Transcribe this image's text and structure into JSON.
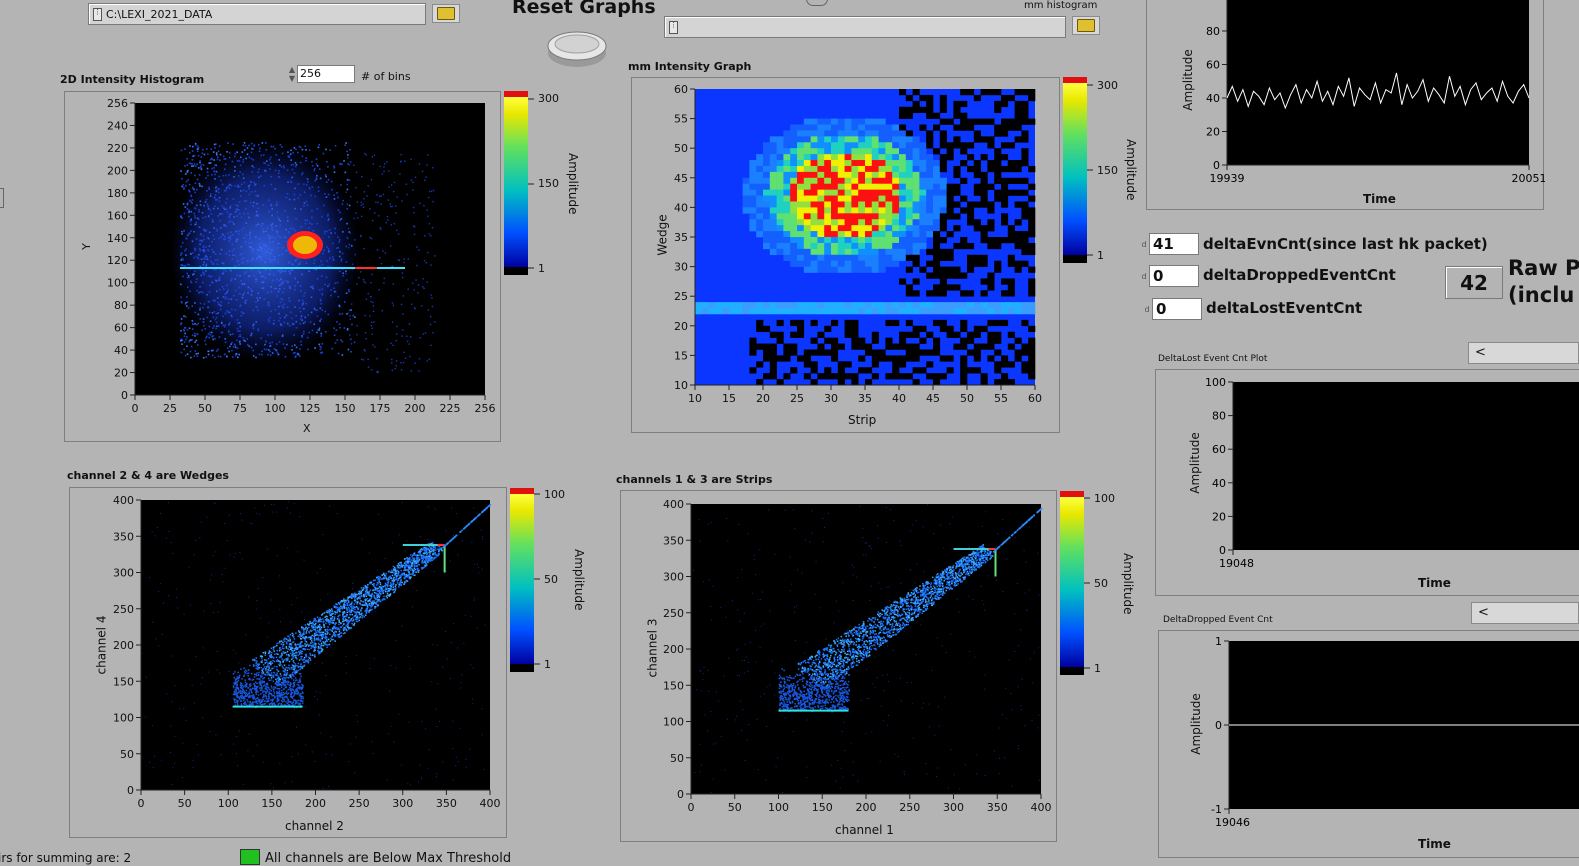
{
  "top": {
    "data_path": "C:\\LEXI_2021_DATA",
    "reset_label": "Reset Graphs",
    "mm_hist_label": "mm histogram",
    "mm_hist_path": ""
  },
  "hist2d": {
    "title": "2D Intensity Histogram",
    "bins_value": "256",
    "bins_label": "# of bins",
    "xlabel": "X",
    "ylabel": "Y",
    "xticks": [
      "0",
      "25",
      "50",
      "75",
      "100",
      "125",
      "150",
      "175",
      "200",
      "225",
      "256"
    ],
    "yticks": [
      "0",
      "20",
      "40",
      "60",
      "80",
      "100",
      "120",
      "140",
      "160",
      "180",
      "200",
      "220",
      "240",
      "256"
    ],
    "scale_label": "Amplitude",
    "scale_ticks": [
      "300",
      "150",
      "1"
    ]
  },
  "mm": {
    "title": "mm Intensity Graph",
    "xlabel": "Strip",
    "ylabel": "Wedge",
    "xticks": [
      "10",
      "15",
      "20",
      "25",
      "30",
      "35",
      "40",
      "45",
      "50",
      "55",
      "60"
    ],
    "yticks": [
      "10",
      "15",
      "20",
      "25",
      "30",
      "35",
      "40",
      "45",
      "50",
      "55",
      "60"
    ],
    "scale_label": "Amplitude",
    "scale_ticks": [
      "300",
      "150",
      "1"
    ]
  },
  "wedges": {
    "title": "channel 2 & 4 are Wedges",
    "xlabel": "channel 2",
    "ylabel": "channel 4",
    "xticks": [
      "0",
      "50",
      "100",
      "150",
      "200",
      "250",
      "300",
      "350",
      "400"
    ],
    "yticks": [
      "0",
      "50",
      "100",
      "150",
      "200",
      "250",
      "300",
      "350",
      "400"
    ],
    "scale_label": "Amplitude",
    "scale_ticks": [
      "100",
      "50",
      "1"
    ]
  },
  "strips": {
    "title": "channels 1 & 3 are Strips",
    "xlabel": "channel 1",
    "ylabel": "channel 3",
    "xticks": [
      "0",
      "50",
      "100",
      "150",
      "200",
      "250",
      "300",
      "350",
      "400"
    ],
    "yticks": [
      "0",
      "50",
      "100",
      "150",
      "200",
      "250",
      "300",
      "350",
      "400"
    ],
    "scale_label": "Amplitude",
    "scale_ticks": [
      "100",
      "50",
      "1"
    ]
  },
  "amp_plot": {
    "ylabel": "Amplitude",
    "xlabel": "Time",
    "yticks": [
      "0",
      "20",
      "40",
      "60",
      "80"
    ],
    "xticks": [
      "19939",
      "20051"
    ]
  },
  "counters": {
    "evn_value": "41",
    "evn_label": "deltaEvnCnt(since last hk packet)",
    "dropped_value": "0",
    "dropped_label": "deltaDroppedEventCnt",
    "lost_value": "0",
    "lost_label": "deltaLostEventCnt",
    "raw_value": "42",
    "raw_label1": "Raw P",
    "raw_label2": "(inclu"
  },
  "lost_plot": {
    "title": "DeltaLost Event Cnt Plot",
    "ylabel": "Amplitude",
    "xlabel": "Time",
    "yticks": [
      "0",
      "20",
      "40",
      "60",
      "80",
      "100"
    ],
    "xticks": [
      "19048"
    ]
  },
  "dropped_plot": {
    "title": "DeltaDropped  Event Cnt",
    "ylabel": "Amplitude",
    "xlabel": "Time",
    "yticks": [
      "-1",
      "0",
      "1"
    ],
    "xticks": [
      "19046"
    ]
  },
  "bottom": {
    "pairs_text": "irs for summing are: 2",
    "threshold_text": "All channels are Below Max Threshold"
  },
  "chart_data": [
    {
      "type": "heatmap",
      "title": "2D Intensity Histogram",
      "xlabel": "X",
      "ylabel": "Y",
      "xlim": [
        0,
        256
      ],
      "ylim": [
        0,
        256
      ],
      "colorbar": [
        1,
        300
      ],
      "hotspot": {
        "x": 125,
        "y": 130
      },
      "streak_y": 118
    },
    {
      "type": "heatmap",
      "title": "mm Intensity Graph",
      "xlabel": "Strip",
      "ylabel": "Wedge",
      "xlim": [
        10,
        60
      ],
      "ylim": [
        10,
        60
      ],
      "colorbar": [
        1,
        300
      ],
      "blob_center": {
        "x": 32,
        "y": 42
      },
      "band_y": 22.5
    },
    {
      "type": "heatmap",
      "title": "channel 2 & 4 are Wedges",
      "xlabel": "channel 2",
      "ylabel": "channel 4",
      "xlim": [
        0,
        400
      ],
      "ylim": [
        0,
        400
      ],
      "colorbar": [
        1,
        100
      ]
    },
    {
      "type": "heatmap",
      "title": "channels 1 & 3 are Strips",
      "xlabel": "channel 1",
      "ylabel": "channel 3",
      "xlim": [
        0,
        400
      ],
      "ylim": [
        0,
        400
      ],
      "colorbar": [
        1,
        100
      ]
    },
    {
      "type": "line",
      "xlabel": "Time",
      "ylabel": "Amplitude",
      "xlim": [
        19939,
        20051
      ],
      "values": [
        40,
        47,
        38,
        45,
        35,
        44,
        41,
        36,
        46,
        39,
        43,
        34,
        42,
        48,
        37,
        45,
        40,
        50,
        38,
        44,
        36,
        47,
        41,
        52,
        35,
        46,
        42,
        39,
        49,
        37,
        45,
        43,
        55,
        36,
        48,
        40,
        44,
        51,
        38,
        46,
        42,
        37,
        53,
        41,
        47,
        36,
        45,
        49,
        39,
        43,
        46,
        38,
        50,
        41,
        37,
        44,
        48,
        40
      ]
    },
    {
      "type": "line",
      "title": "DeltaLost Event Cnt Plot",
      "xlabel": "Time",
      "ylabel": "Amplitude",
      "ylim": [
        0,
        100
      ],
      "values": []
    },
    {
      "type": "line",
      "title": "DeltaDropped  Event Cnt",
      "xlabel": "Time",
      "ylabel": "Amplitude",
      "ylim": [
        -1,
        1
      ],
      "values": [
        0,
        0
      ]
    }
  ]
}
